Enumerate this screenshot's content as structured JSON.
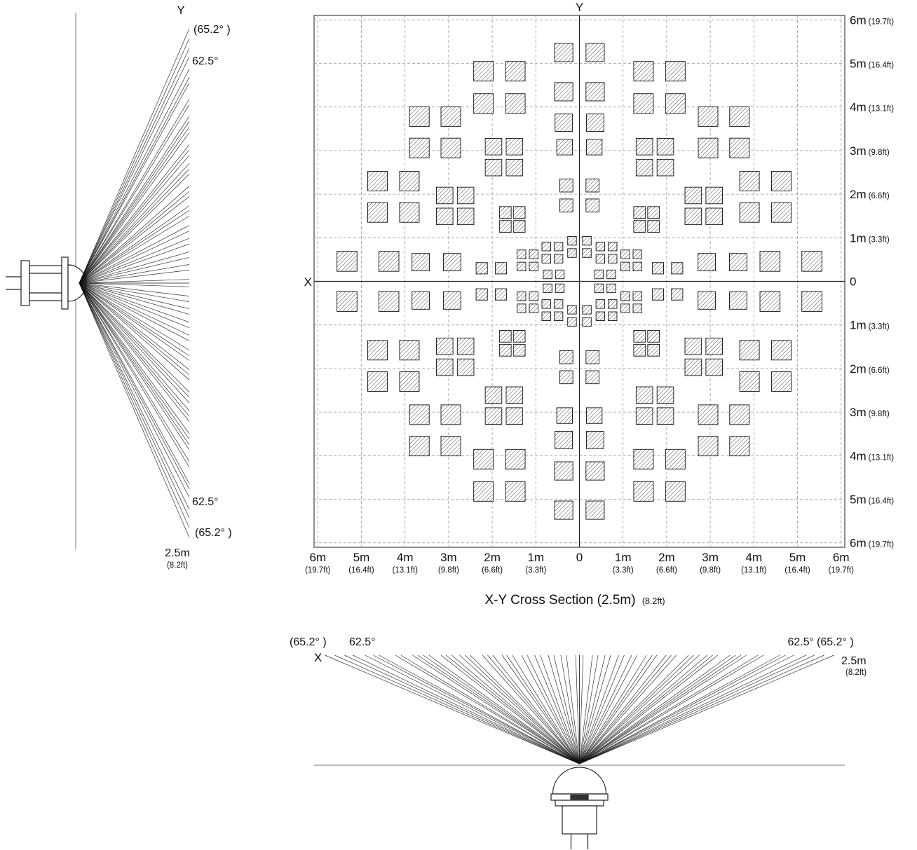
{
  "side_view": {
    "axis_label": "Y",
    "angle_outer_top": "(65.2° )",
    "angle_inner_top": "62.5°",
    "angle_inner_bottom": "62.5°",
    "angle_outer_bottom": "(65.2° )",
    "distance_main": "2.5m",
    "distance_sub": "(8.2ft)",
    "range_m": 2.5,
    "beam_levels_m": [
      0.08,
      0.28,
      0.4,
      0.55,
      0.67,
      0.84,
      0.96,
      1.12,
      1.24,
      1.44,
      1.56,
      1.66,
      1.86,
      1.97,
      2.08,
      2.34,
      2.45,
      2.57,
      2.74,
      2.86,
      2.97,
      3.23,
      3.35,
      3.47,
      3.58,
      3.83,
      3.95,
      4.3,
      4.42,
      4.6,
      4.86,
      5.04,
      5.25,
      5.46
    ]
  },
  "cross_section": {
    "title_main": "X-Y Cross Section (2.5m)",
    "title_sub": "(8.2ft)",
    "x_axis_label": "X",
    "y_axis_label": "Y",
    "axis_max_m": 6,
    "y_tick_labels": [
      {
        "main": "6m",
        "sub": "(19.7ft)"
      },
      {
        "main": "5m",
        "sub": "(16.4ft)"
      },
      {
        "main": "4m",
        "sub": "(13.1ft)"
      },
      {
        "main": "3m",
        "sub": "(9.8ft)"
      },
      {
        "main": "2m",
        "sub": "(6.6ft)"
      },
      {
        "main": "1m",
        "sub": "(3.3ft)"
      },
      {
        "main": "0",
        "sub": ""
      },
      {
        "main": "1m",
        "sub": "(3.3ft)"
      },
      {
        "main": "2m",
        "sub": "(6.6ft)"
      },
      {
        "main": "3m",
        "sub": "(9.8ft)"
      },
      {
        "main": "4m",
        "sub": "(13.1ft)"
      },
      {
        "main": "5m",
        "sub": "(16.4ft)"
      },
      {
        "main": "6m",
        "sub": "(19.7ft)"
      }
    ],
    "x_tick_labels": [
      {
        "main": "6m",
        "sub": "(19.7ft)"
      },
      {
        "main": "5m",
        "sub": "(16.4ft)"
      },
      {
        "main": "4m",
        "sub": "(13.1ft)"
      },
      {
        "main": "3m",
        "sub": "(9.8ft)"
      },
      {
        "main": "2m",
        "sub": "(6.6ft)"
      },
      {
        "main": "1m",
        "sub": "(3.3ft)"
      },
      {
        "main": "0",
        "sub": ""
      },
      {
        "main": "1m",
        "sub": "(3.3ft)"
      },
      {
        "main": "2m",
        "sub": "(6.6ft)"
      },
      {
        "main": "3m",
        "sub": "(9.8ft)"
      },
      {
        "main": "4m",
        "sub": "(13.1ft)"
      },
      {
        "main": "5m",
        "sub": "(16.4ft)"
      },
      {
        "main": "6m",
        "sub": "(19.7ft)"
      }
    ],
    "symmetry": "mirror-both-axes",
    "zones_quadrant_m": [
      [
        0.36,
        5.25,
        0.42
      ],
      [
        0.36,
        4.35,
        0.42
      ],
      [
        0.36,
        3.64,
        0.4
      ],
      [
        0.34,
        3.08,
        0.36
      ],
      [
        0.3,
        2.2,
        0.3
      ],
      [
        0.3,
        1.74,
        0.3
      ],
      [
        1.47,
        4.82,
        0.45
      ],
      [
        2.2,
        4.82,
        0.45
      ],
      [
        1.47,
        4.08,
        0.45
      ],
      [
        2.2,
        4.08,
        0.45
      ],
      [
        2.95,
        3.78,
        0.45
      ],
      [
        3.67,
        3.78,
        0.45
      ],
      [
        2.95,
        3.06,
        0.45
      ],
      [
        3.67,
        3.06,
        0.45
      ],
      [
        3.9,
        2.3,
        0.45
      ],
      [
        4.63,
        2.3,
        0.45
      ],
      [
        3.9,
        1.58,
        0.45
      ],
      [
        4.63,
        1.58,
        0.45
      ],
      [
        4.37,
        0.46,
        0.46
      ],
      [
        5.33,
        0.46,
        0.46
      ],
      [
        1.49,
        3.09,
        0.38
      ],
      [
        1.97,
        3.09,
        0.38
      ],
      [
        1.49,
        2.61,
        0.38
      ],
      [
        1.97,
        2.61,
        0.38
      ],
      [
        2.61,
        1.97,
        0.38
      ],
      [
        3.09,
        1.97,
        0.38
      ],
      [
        2.61,
        1.49,
        0.38
      ],
      [
        3.09,
        1.49,
        0.38
      ],
      [
        2.92,
        0.44,
        0.4
      ],
      [
        3.64,
        0.44,
        0.4
      ],
      [
        1.38,
        1.58,
        0.27
      ],
      [
        1.7,
        1.58,
        0.27
      ],
      [
        1.38,
        1.26,
        0.27
      ],
      [
        1.7,
        1.26,
        0.27
      ],
      [
        1.8,
        0.3,
        0.26
      ],
      [
        2.24,
        0.3,
        0.26
      ],
      [
        0.17,
        0.93,
        0.2
      ],
      [
        0.17,
        0.65,
        0.2
      ],
      [
        0.48,
        0.8,
        0.2
      ],
      [
        0.76,
        0.8,
        0.2
      ],
      [
        0.48,
        0.52,
        0.2
      ],
      [
        0.76,
        0.52,
        0.2
      ],
      [
        1.05,
        0.62,
        0.2
      ],
      [
        1.33,
        0.62,
        0.2
      ],
      [
        1.05,
        0.34,
        0.2
      ],
      [
        1.33,
        0.34,
        0.2
      ],
      [
        0.45,
        0.16,
        0.2
      ],
      [
        0.73,
        0.16,
        0.2
      ]
    ]
  },
  "bottom_view": {
    "axis_label": "X",
    "angle_outer_left": "(65.2° )",
    "angle_inner_left": "62.5°",
    "angle_inner_right": "62.5°",
    "angle_outer_right": "(65.2° )",
    "distance_main": "2.5m",
    "distance_sub": "(8.2ft)",
    "range_m": 2.5,
    "beam_levels_m": [
      0.08,
      0.28,
      0.4,
      0.55,
      0.67,
      0.84,
      0.96,
      1.12,
      1.24,
      1.44,
      1.56,
      1.66,
      1.86,
      1.97,
      2.08,
      2.34,
      2.45,
      2.57,
      2.74,
      2.86,
      2.97,
      3.23,
      3.35,
      3.47,
      3.58,
      3.83,
      3.95,
      4.3,
      4.42,
      4.6,
      4.86,
      5.04,
      5.25,
      5.46
    ]
  },
  "colors": {
    "line": "#111111",
    "grid_dash": "#999999",
    "background": "#ffffff"
  }
}
